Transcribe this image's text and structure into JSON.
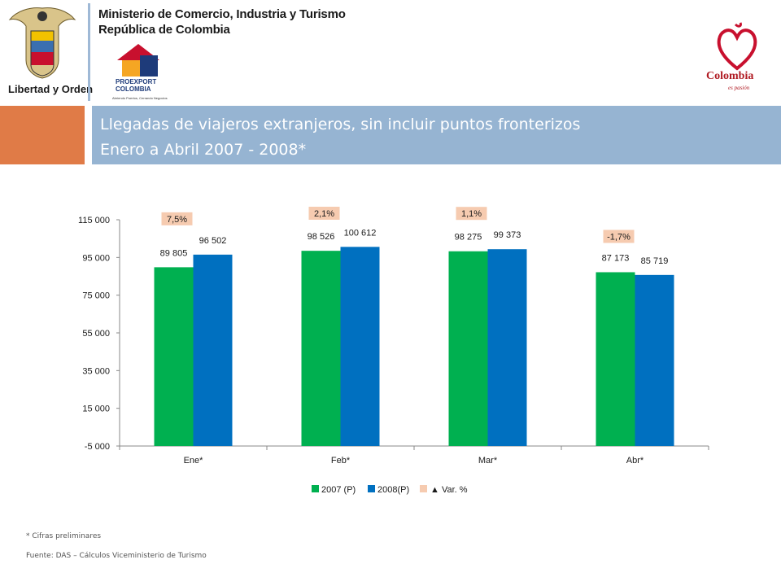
{
  "header": {
    "ministry_name": "Ministerio de Comercio, Industria y Turismo",
    "ministry_country": "República de Colombia",
    "coat_motto": "Libertad y Orden",
    "proexport_brand": "PROEXPORT",
    "proexport_sub": "COLOMBIA",
    "proexport_caption": "Abriendo Puertos, Cerrando Negocios",
    "colombia_brand": "Colombia",
    "colombia_tagline": "es pasión"
  },
  "title": {
    "line1": "Llegadas de viajeros extranjeros, sin incluir puntos fronterizos",
    "line2": "Enero a Abril 2007 - 2008*"
  },
  "colors": {
    "series_2007": "#00b050",
    "series_2008": "#0070c0",
    "var_box": "#f6cbb0",
    "title_band": "#96b4d2",
    "orange_block": "#e07b47"
  },
  "chart_data": {
    "type": "bar",
    "categories": [
      "Ene*",
      "Feb*",
      "Mar*",
      "Abr*"
    ],
    "series": [
      {
        "name": "2007 (P)",
        "values": [
          89805,
          98526,
          98275,
          87173
        ],
        "labels": [
          "89 805",
          "98 526",
          "98 275",
          "87 173"
        ]
      },
      {
        "name": "2008(P)",
        "values": [
          96502,
          100612,
          99373,
          85719
        ],
        "labels": [
          "96 502",
          "100 612",
          "99 373",
          "85 719"
        ]
      }
    ],
    "variation": {
      "name": "Var. %",
      "values": [
        "7,5%",
        "2,1%",
        "1,1%",
        "-1,7%"
      ]
    },
    "yticks": [
      "115 000",
      "95 000",
      "75 000",
      "55 000",
      "35 000",
      "15 000",
      "-5 000"
    ],
    "ytick_values": [
      115000,
      95000,
      75000,
      55000,
      35000,
      15000,
      -5000
    ],
    "ylim": [
      -5000,
      115000
    ],
    "legend_position": "bottom",
    "grid": false
  },
  "footer": {
    "preliminary": "* Cifras preliminares",
    "source": "Fuente: DAS – Cálculos  Viceministerio de Turismo"
  }
}
